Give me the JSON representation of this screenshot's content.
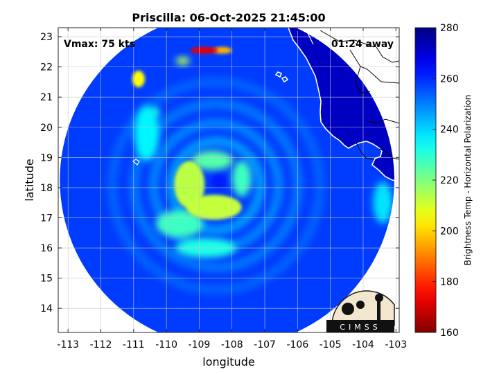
{
  "chart_data": {
    "type": "heatmap",
    "title": "Priscilla: 06-Oct-2025 21:45:00",
    "xlabel": "longitude",
    "ylabel": "latitude",
    "xlim": [
      -113.3,
      -102.9
    ],
    "ylim": [
      13.2,
      23.3
    ],
    "x_ticks": [
      -113,
      -112,
      -111,
      -110,
      -109,
      -108,
      -107,
      -106,
      -105,
      -104,
      -103
    ],
    "y_ticks": [
      14,
      15,
      16,
      17,
      18,
      19,
      20,
      21,
      22,
      23
    ],
    "grid": true,
    "annotations": {
      "left": "Vmax: 75 kts",
      "right": "01:24 away"
    },
    "colorbar": {
      "label": "Brightness Temp - Horizontal Polarization",
      "range": [
        160,
        280
      ],
      "ticks": [
        160,
        180,
        200,
        220,
        240,
        260,
        280
      ],
      "colormap": "jet",
      "placement": "right"
    },
    "storm_center": {
      "lon": -108.4,
      "lat": 18.2
    },
    "swath": {
      "center_lon": -108.15,
      "center_lat": 18.25,
      "radius_deg": 5.1
    },
    "background_tb": 258,
    "features": [
      {
        "name": "eye",
        "lon": -108.4,
        "lat": 18.2,
        "tb": 262
      },
      {
        "name": "eyewall-south",
        "lon": -108.55,
        "lat": 17.35,
        "tb": 212
      },
      {
        "name": "eyewall-west",
        "lon": -109.3,
        "lat": 18.1,
        "tb": 213
      },
      {
        "name": "eyewall-north",
        "lon": -108.6,
        "lat": 18.9,
        "tb": 225
      },
      {
        "name": "inner-band-east",
        "lon": -107.7,
        "lat": 18.3,
        "tb": 228
      },
      {
        "name": "spiral-band-sw",
        "lon": -109.6,
        "lat": 16.8,
        "tb": 228
      },
      {
        "name": "spiral-band-s",
        "lon": -108.8,
        "lat": 16.0,
        "tb": 232
      },
      {
        "name": "outer-band-nw",
        "lon": -110.6,
        "lat": 19.8,
        "tb": 236
      },
      {
        "name": "convection-north",
        "lon": -108.85,
        "lat": 22.55,
        "tb": 172
      },
      {
        "name": "convection-north-east",
        "lon": -108.3,
        "lat": 22.55,
        "tb": 196
      },
      {
        "name": "convection-nw",
        "lon": -110.85,
        "lat": 21.6,
        "tb": 205
      },
      {
        "name": "convection-n-small",
        "lon": -109.5,
        "lat": 22.2,
        "tb": 215
      },
      {
        "name": "convection-w",
        "lon": -110.35,
        "lat": 20.5,
        "tb": 232
      },
      {
        "name": "coast-convection-e",
        "lon": -103.4,
        "lat": 17.5,
        "tb": 238
      }
    ],
    "land_tb": 272
  },
  "logo": {
    "text": "CIMSS"
  }
}
